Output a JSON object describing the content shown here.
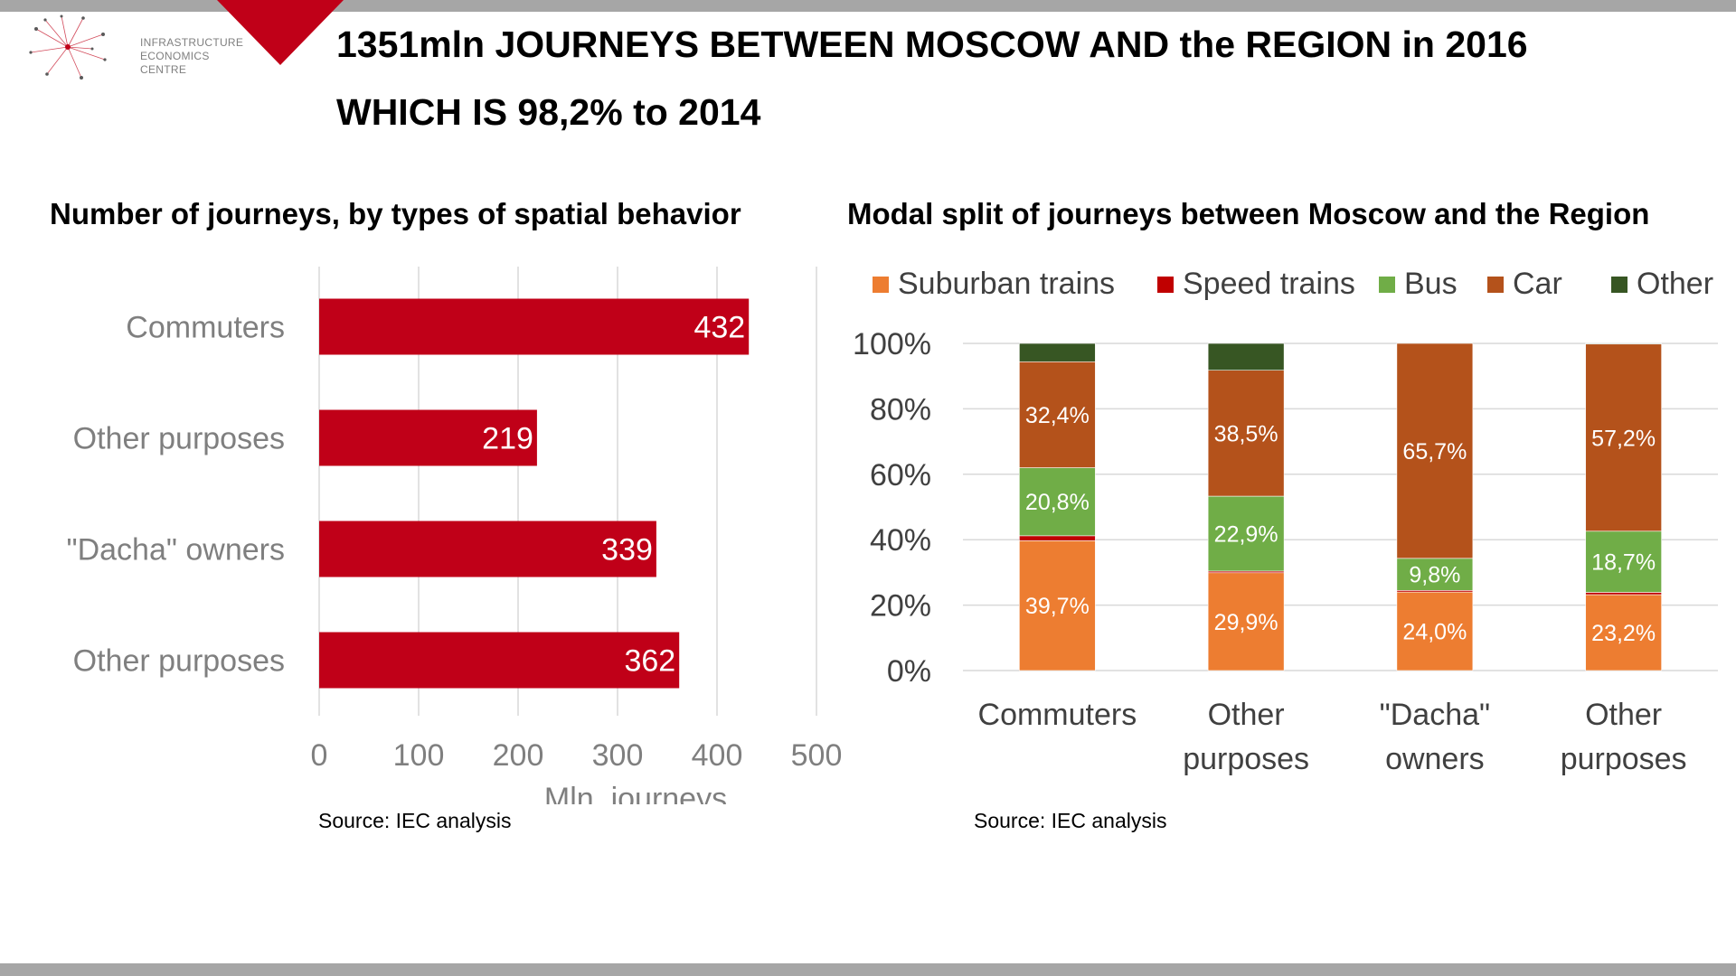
{
  "header": {
    "logo_lines": [
      "INFRASTRUCTURE",
      "ECONOMICS",
      "CENTRE"
    ],
    "title_line1": "1351mln JOURNEYS BETWEEN MOSCOW AND the REGION in 2016",
    "title_line2": "WHICH IS 98,2% to 2014"
  },
  "colors": {
    "accent_red": "#c00018",
    "suburban": "#ed7d31",
    "speed": "#c00000",
    "bus": "#70ad47",
    "car": "#b4521b",
    "other": "#375623",
    "grid": "#d9d9d9",
    "axis_text": "#7f7f7f",
    "frame_gray": "#a6a6a6"
  },
  "chart_data": [
    {
      "type": "bar",
      "orientation": "horizontal",
      "title": "Number of journeys, by types of spatial behavior",
      "categories": [
        "Commuters",
        "Other purposes",
        "\"Dacha\" owners",
        "Other  purposes"
      ],
      "values": [
        432,
        219,
        339,
        362
      ],
      "xlabel": "Mln. journeys",
      "xlim": [
        0,
        500
      ],
      "xticks": [
        "0",
        "100",
        "200",
        "300",
        "400",
        "500"
      ],
      "grid": "vertical",
      "source": "Source: IEC analysis"
    },
    {
      "type": "bar",
      "stacked": true,
      "title": "Modal split of journeys between Moscow and the Region",
      "categories": [
        [
          "Commuters"
        ],
        [
          "Other",
          "purposes"
        ],
        [
          "\"Dacha\"",
          "owners"
        ],
        [
          "Other",
          "purposes"
        ]
      ],
      "ylim": [
        0,
        100
      ],
      "yticks": [
        "0%",
        "20%",
        "40%",
        "60%",
        "80%",
        "100%"
      ],
      "legend_position": "top",
      "series": [
        {
          "name": "Suburban trains",
          "values": [
            39.7,
            29.9,
            24.0,
            23.2
          ],
          "labels": [
            "39,7%",
            "29,9%",
            "24,0%",
            "23,2%"
          ]
        },
        {
          "name": "Speed trains",
          "values": [
            1.5,
            0.5,
            0.5,
            0.7
          ],
          "labels": [
            "",
            "",
            "",
            ""
          ]
        },
        {
          "name": "Bus",
          "values": [
            20.8,
            22.9,
            9.8,
            18.7
          ],
          "labels": [
            "20,8%",
            "22,9%",
            "9,8%",
            "18,7%"
          ]
        },
        {
          "name": "Car",
          "values": [
            32.4,
            38.5,
            65.7,
            57.2
          ],
          "labels": [
            "32,4%",
            "38,5%",
            "65,7%",
            "57,2%"
          ]
        },
        {
          "name": "Other",
          "values": [
            5.6,
            8.2,
            0.0,
            0.2
          ],
          "labels": [
            "",
            "",
            "",
            ""
          ]
        }
      ],
      "source": "Source: IEC analysis"
    }
  ]
}
